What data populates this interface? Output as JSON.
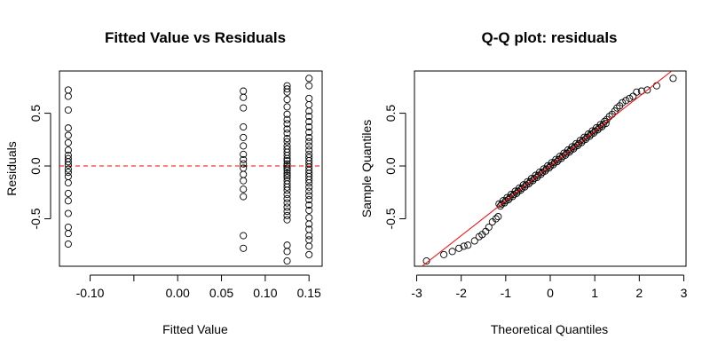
{
  "chart_data": [
    {
      "type": "scatter",
      "title": "Fitted Value vs Residuals",
      "xlabel": "Fitted Value",
      "ylabel": "Residuals",
      "xlim": [
        -0.135,
        0.165
      ],
      "ylim": [
        -0.95,
        0.9
      ],
      "x_ticks": [
        -0.15,
        -0.1,
        -0.05,
        0.0,
        0.05,
        0.1,
        0.15
      ],
      "x_tick_labels": [
        "",
        "-0.10",
        "",
        "0.00",
        "0.05",
        "0.10",
        "0.15"
      ],
      "y_ticks": [
        -0.5,
        0.0,
        0.5
      ],
      "y_tick_labels": [
        "-0.5",
        "0.0",
        "0.5"
      ],
      "reference_line": {
        "y": 0,
        "style": "dashed",
        "color": "#ff0000"
      },
      "grid": false,
      "legend": "none",
      "point_color": "#000000",
      "groups": [
        {
          "x": -0.125,
          "y": [
            0.72,
            0.66,
            0.53,
            0.36,
            0.29,
            0.22,
            0.15,
            0.1,
            0.07,
            0.04,
            0.01,
            -0.03,
            -0.06,
            -0.1,
            -0.16,
            -0.26,
            -0.33,
            -0.45,
            -0.58,
            -0.64,
            -0.74
          ]
        },
        {
          "x": 0.075,
          "y": [
            0.71,
            0.65,
            0.55,
            0.37,
            0.27,
            0.19,
            0.11,
            0.06,
            0.02,
            -0.02,
            -0.08,
            -0.14,
            -0.22,
            -0.29,
            -0.66,
            -0.78
          ]
        },
        {
          "x": 0.125,
          "y": [
            0.76,
            0.73,
            0.7,
            0.63,
            0.56,
            0.49,
            0.44,
            0.4,
            0.35,
            0.31,
            0.26,
            0.23,
            0.19,
            0.16,
            0.13,
            0.1,
            0.07,
            0.05,
            0.02,
            0.0,
            -0.02,
            -0.04,
            -0.07,
            -0.09,
            -0.11,
            -0.14,
            -0.17,
            -0.2,
            -0.23,
            -0.27,
            -0.31,
            -0.35,
            -0.39,
            -0.43,
            -0.47,
            -0.51,
            -0.75,
            -0.81,
            -0.9
          ]
        },
        {
          "x": 0.15,
          "y": [
            0.83,
            0.76,
            0.64,
            0.58,
            0.52,
            0.47,
            0.42,
            0.37,
            0.32,
            0.27,
            0.23,
            0.19,
            0.15,
            0.11,
            0.08,
            0.05,
            0.02,
            -0.01,
            -0.04,
            -0.07,
            -0.1,
            -0.13,
            -0.16,
            -0.2,
            -0.24,
            -0.28,
            -0.32,
            -0.37,
            -0.42,
            -0.49,
            -0.55,
            -0.6,
            -0.66,
            -0.7,
            -0.76,
            -0.84
          ]
        }
      ]
    },
    {
      "type": "scatter",
      "title": "Q-Q plot: residuals",
      "xlabel": "Theoretical Quantiles",
      "ylabel": "Sample Quantiles",
      "xlim": [
        -3.05,
        3.05
      ],
      "ylim": [
        -0.95,
        0.9
      ],
      "x_ticks": [
        -3,
        -2,
        -1,
        0,
        1,
        2,
        3
      ],
      "x_tick_labels": [
        "-3",
        "-2",
        "-1",
        "0",
        "1",
        "2",
        "3"
      ],
      "y_ticks": [
        -0.5,
        0.0,
        0.5
      ],
      "y_tick_labels": [
        "-0.5",
        "0.0",
        "0.5"
      ],
      "reference_line": {
        "slope": 0.33,
        "intercept": 0.0,
        "color": "#ff0000"
      },
      "grid": false,
      "legend": "none",
      "point_color": "#000000",
      "points": [
        [
          -2.78,
          -0.9
        ],
        [
          -2.39,
          -0.84
        ],
        [
          -2.2,
          -0.81
        ],
        [
          -2.05,
          -0.78
        ],
        [
          -1.94,
          -0.76
        ],
        [
          -1.85,
          -0.75
        ],
        [
          -1.7,
          -0.71
        ],
        [
          -1.6,
          -0.67
        ],
        [
          -1.53,
          -0.65
        ],
        [
          -1.45,
          -0.62
        ],
        [
          -1.38,
          -0.58
        ],
        [
          -1.3,
          -0.53
        ],
        [
          -1.22,
          -0.5
        ],
        [
          -1.17,
          -0.48
        ]
      ],
      "dense_band": {
        "x_from": -1.15,
        "x_to": 1.25,
        "n_points": 80,
        "slope": 0.33,
        "jitter": 0.02
      },
      "upper_points": [
        [
          1.27,
          0.44
        ],
        [
          1.33,
          0.47
        ],
        [
          1.39,
          0.49
        ],
        [
          1.45,
          0.52
        ],
        [
          1.5,
          0.55
        ],
        [
          1.56,
          0.57
        ],
        [
          1.62,
          0.6
        ],
        [
          1.7,
          0.62
        ],
        [
          1.78,
          0.64
        ],
        [
          1.86,
          0.66
        ],
        [
          1.94,
          0.7
        ],
        [
          2.05,
          0.71
        ],
        [
          2.18,
          0.72
        ],
        [
          2.39,
          0.76
        ],
        [
          2.76,
          0.83
        ]
      ]
    }
  ]
}
